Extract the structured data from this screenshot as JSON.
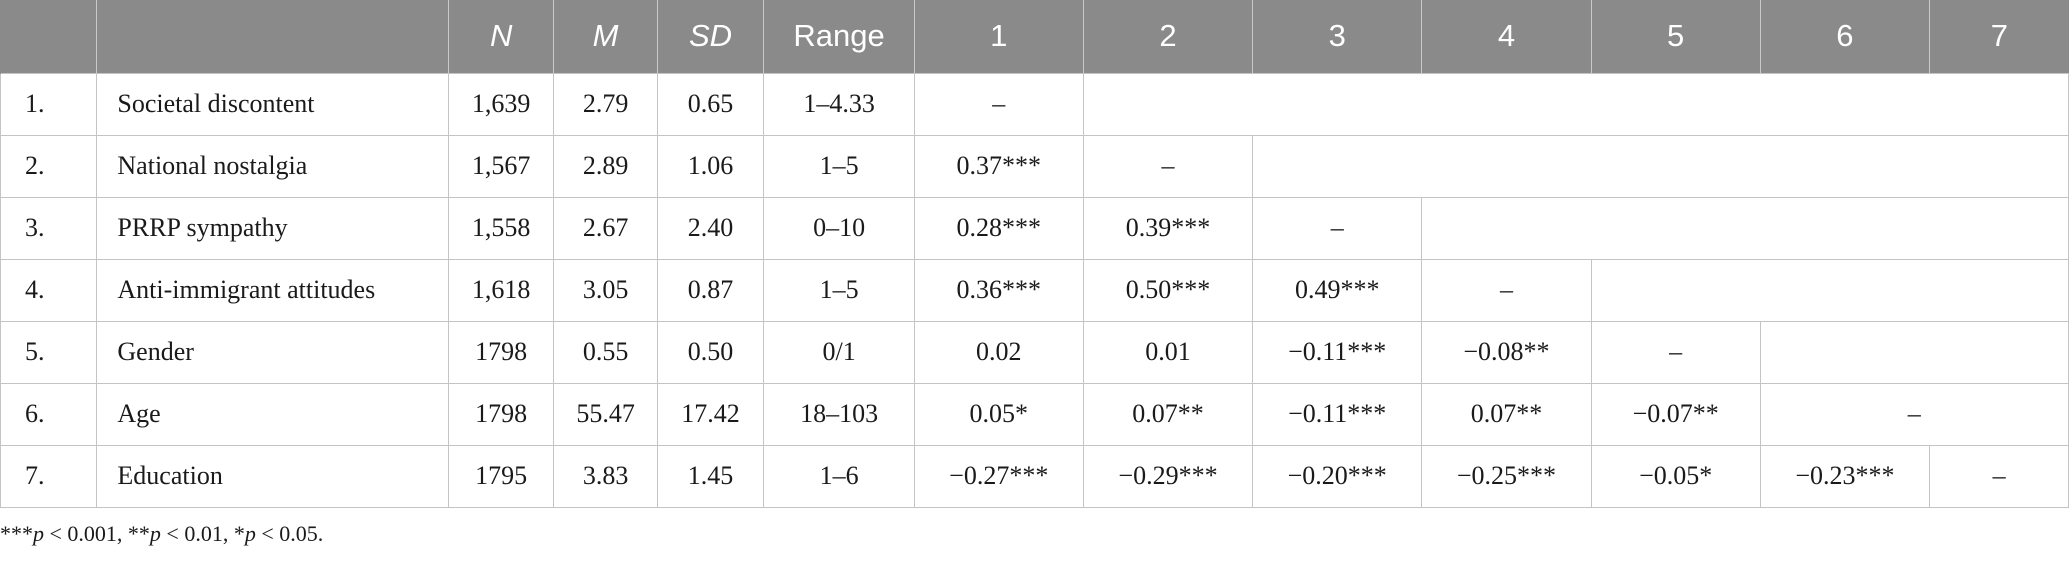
{
  "header": [
    "",
    "",
    "N",
    "M",
    "SD",
    "Range",
    "1",
    "2",
    "3",
    "4",
    "5",
    "6",
    "7"
  ],
  "rows": [
    {
      "num": "1.",
      "variable": "Societal discontent",
      "n": "1,639",
      "m": "2.79",
      "sd": "0.65",
      "range": "1–4.33",
      "corr": [
        "–"
      ]
    },
    {
      "num": "2.",
      "variable": "National nostalgia",
      "n": "1,567",
      "m": "2.89",
      "sd": "1.06",
      "range": "1–5",
      "corr": [
        "0.37***",
        "–"
      ]
    },
    {
      "num": "3.",
      "variable": "PRRP sympathy",
      "n": "1,558",
      "m": "2.67",
      "sd": "2.40",
      "range": "0–10",
      "corr": [
        "0.28***",
        "0.39***",
        "–"
      ]
    },
    {
      "num": "4.",
      "variable": "Anti-immigrant attitudes",
      "n": "1,618",
      "m": "3.05",
      "sd": "0.87",
      "range": "1–5",
      "corr": [
        "0.36***",
        "0.50***",
        "0.49***",
        "–"
      ]
    },
    {
      "num": "5.",
      "variable": "Gender",
      "n": "1798",
      "m": "0.55",
      "sd": "0.50",
      "range": "0/1",
      "corr": [
        "0.02",
        "0.01",
        "−0.11***",
        "−0.08**",
        "–"
      ]
    },
    {
      "num": "6.",
      "variable": "Age",
      "n": "1798",
      "m": "55.47",
      "sd": "17.42",
      "range": "18–103",
      "corr": [
        "0.05*",
        "0.07**",
        "−0.11***",
        "0.07**",
        "−0.07**",
        "–"
      ]
    },
    {
      "num": "7.",
      "variable": "Education",
      "n": "1795",
      "m": "3.83",
      "sd": "1.45",
      "range": "1–6",
      "corr": [
        "−0.27***",
        "−0.29***",
        "−0.20***",
        "−0.25***",
        "−0.05*",
        "−0.23***",
        "–"
      ]
    }
  ],
  "note": {
    "s1": "***",
    "p1": "p",
    "t1": " < 0.001, ",
    "s2": "**",
    "p2": "p",
    "t2": " < 0.01, ",
    "s3": "*",
    "p3": "p",
    "t3": " < 0.05."
  }
}
